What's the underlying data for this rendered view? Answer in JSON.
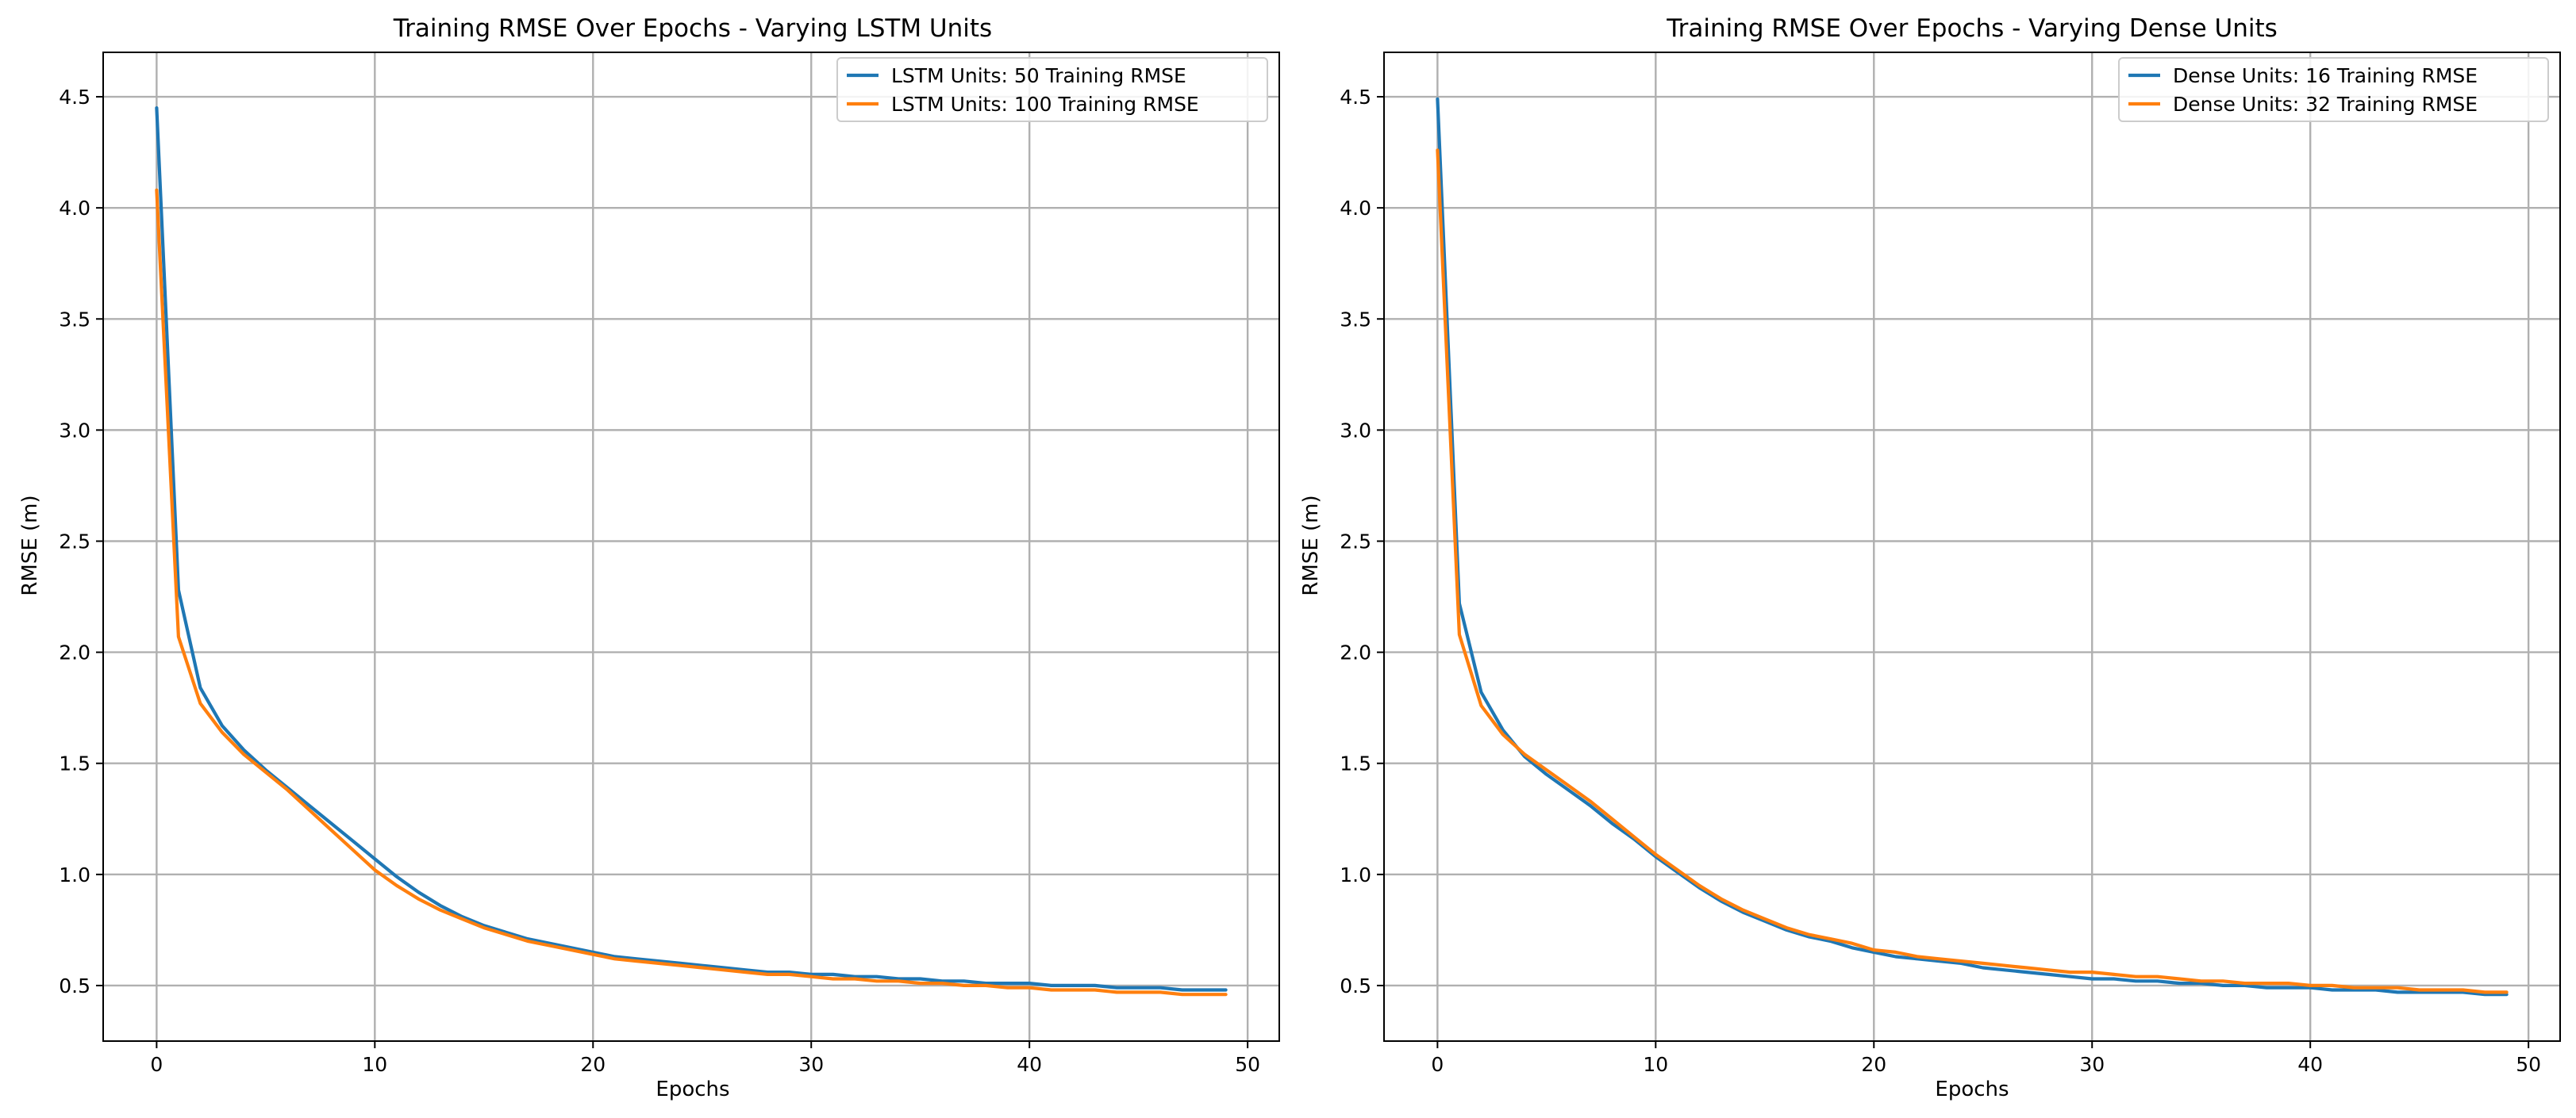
{
  "chart_data": [
    {
      "type": "line",
      "title": "Training RMSE Over Epochs - Varying LSTM Units",
      "xlabel": "Epochs",
      "ylabel": "RMSE (m)",
      "xlim": [
        -2.45,
        51.45
      ],
      "ylim": [
        0.25,
        4.7
      ],
      "xticks": [
        0,
        10,
        20,
        30,
        40,
        50
      ],
      "yticks": [
        0.5,
        1.0,
        1.5,
        2.0,
        2.5,
        3.0,
        3.5,
        4.0,
        4.5
      ],
      "grid": true,
      "legend_position": "top-right",
      "x": [
        0,
        1,
        2,
        3,
        4,
        5,
        6,
        7,
        8,
        9,
        10,
        11,
        12,
        13,
        14,
        15,
        16,
        17,
        18,
        19,
        20,
        21,
        22,
        23,
        24,
        25,
        26,
        27,
        28,
        29,
        30,
        31,
        32,
        33,
        34,
        35,
        36,
        37,
        38,
        39,
        40,
        41,
        42,
        43,
        44,
        45,
        46,
        47,
        48,
        49
      ],
      "series": [
        {
          "name": "LSTM Units: 50 Training RMSE",
          "color": "#1f77b4",
          "values": [
            4.45,
            2.28,
            1.84,
            1.67,
            1.56,
            1.47,
            1.39,
            1.31,
            1.23,
            1.15,
            1.07,
            0.99,
            0.92,
            0.86,
            0.81,
            0.77,
            0.74,
            0.71,
            0.69,
            0.67,
            0.65,
            0.63,
            0.62,
            0.61,
            0.6,
            0.59,
            0.58,
            0.57,
            0.56,
            0.56,
            0.55,
            0.55,
            0.54,
            0.54,
            0.53,
            0.53,
            0.52,
            0.52,
            0.51,
            0.51,
            0.51,
            0.5,
            0.5,
            0.5,
            0.49,
            0.49,
            0.49,
            0.48,
            0.48,
            0.48
          ]
        },
        {
          "name": "LSTM Units: 100 Training RMSE",
          "color": "#ff7f0e",
          "values": [
            4.08,
            2.07,
            1.77,
            1.64,
            1.54,
            1.46,
            1.38,
            1.29,
            1.2,
            1.11,
            1.02,
            0.95,
            0.89,
            0.84,
            0.8,
            0.76,
            0.73,
            0.7,
            0.68,
            0.66,
            0.64,
            0.62,
            0.61,
            0.6,
            0.59,
            0.58,
            0.57,
            0.56,
            0.55,
            0.55,
            0.54,
            0.53,
            0.53,
            0.52,
            0.52,
            0.51,
            0.51,
            0.5,
            0.5,
            0.49,
            0.49,
            0.48,
            0.48,
            0.48,
            0.47,
            0.47,
            0.47,
            0.46,
            0.46,
            0.46
          ]
        }
      ]
    },
    {
      "type": "line",
      "title": "Training RMSE Over Epochs - Varying Dense Units",
      "xlabel": "Epochs",
      "ylabel": "RMSE (m)",
      "xlim": [
        -2.45,
        51.45
      ],
      "ylim": [
        0.25,
        4.7
      ],
      "xticks": [
        0,
        10,
        20,
        30,
        40,
        50
      ],
      "yticks": [
        0.5,
        1.0,
        1.5,
        2.0,
        2.5,
        3.0,
        3.5,
        4.0,
        4.5
      ],
      "grid": true,
      "legend_position": "top-right",
      "x": [
        0,
        1,
        2,
        3,
        4,
        5,
        6,
        7,
        8,
        9,
        10,
        11,
        12,
        13,
        14,
        15,
        16,
        17,
        18,
        19,
        20,
        21,
        22,
        23,
        24,
        25,
        26,
        27,
        28,
        29,
        30,
        31,
        32,
        33,
        34,
        35,
        36,
        37,
        38,
        39,
        40,
        41,
        42,
        43,
        44,
        45,
        46,
        47,
        48,
        49
      ],
      "series": [
        {
          "name": "Dense Units: 16 Training RMSE",
          "color": "#1f77b4",
          "values": [
            4.49,
            2.22,
            1.82,
            1.65,
            1.53,
            1.45,
            1.38,
            1.31,
            1.23,
            1.16,
            1.08,
            1.01,
            0.94,
            0.88,
            0.83,
            0.79,
            0.75,
            0.72,
            0.7,
            0.67,
            0.65,
            0.63,
            0.62,
            0.61,
            0.6,
            0.58,
            0.57,
            0.56,
            0.55,
            0.54,
            0.53,
            0.53,
            0.52,
            0.52,
            0.51,
            0.51,
            0.5,
            0.5,
            0.49,
            0.49,
            0.49,
            0.48,
            0.48,
            0.48,
            0.47,
            0.47,
            0.47,
            0.47,
            0.46,
            0.46
          ]
        },
        {
          "name": "Dense Units: 32 Training RMSE",
          "color": "#ff7f0e",
          "values": [
            4.26,
            2.08,
            1.76,
            1.63,
            1.54,
            1.47,
            1.4,
            1.33,
            1.25,
            1.17,
            1.09,
            1.02,
            0.95,
            0.89,
            0.84,
            0.8,
            0.76,
            0.73,
            0.71,
            0.69,
            0.66,
            0.65,
            0.63,
            0.62,
            0.61,
            0.6,
            0.59,
            0.58,
            0.57,
            0.56,
            0.56,
            0.55,
            0.54,
            0.54,
            0.53,
            0.52,
            0.52,
            0.51,
            0.51,
            0.51,
            0.5,
            0.5,
            0.49,
            0.49,
            0.49,
            0.48,
            0.48,
            0.48,
            0.47,
            0.47
          ]
        }
      ]
    }
  ]
}
